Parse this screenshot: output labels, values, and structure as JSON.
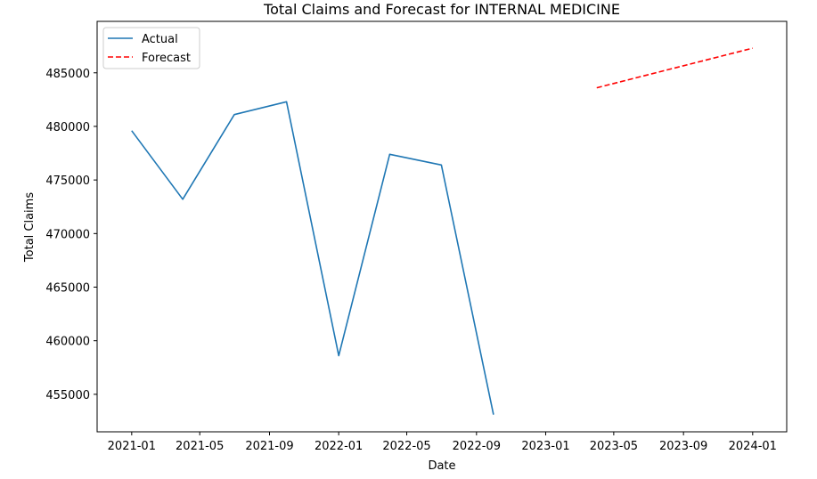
{
  "chart_data": {
    "type": "line",
    "title": "Total Claims and Forecast for INTERNAL MEDICINE",
    "xlabel": "Date",
    "ylabel": "Total Claims",
    "xlim": [
      "2020-11-01",
      "2024-03-01"
    ],
    "ylim": [
      451500,
      489800
    ],
    "x_ticks": [
      "2021-01",
      "2021-05",
      "2021-09",
      "2022-01",
      "2022-05",
      "2022-09",
      "2023-01",
      "2023-05",
      "2023-09",
      "2024-01"
    ],
    "y_ticks": [
      455000,
      460000,
      465000,
      470000,
      475000,
      480000,
      485000
    ],
    "grid": false,
    "legend_position": "top-left",
    "series": [
      {
        "name": "Actual",
        "color": "#1f77b4",
        "style": "solid",
        "points": [
          {
            "x": "2021-01-01",
            "y": 479600
          },
          {
            "x": "2021-04-01",
            "y": 473200
          },
          {
            "x": "2021-07-01",
            "y": 481100
          },
          {
            "x": "2021-10-01",
            "y": 482300
          },
          {
            "x": "2022-01-01",
            "y": 458600
          },
          {
            "x": "2022-04-01",
            "y": 477400
          },
          {
            "x": "2022-07-01",
            "y": 476400
          },
          {
            "x": "2022-10-01",
            "y": 453100
          }
        ]
      },
      {
        "name": "Forecast",
        "color": "#ff0000",
        "style": "dashed",
        "points": [
          {
            "x": "2023-04-01",
            "y": 483600
          },
          {
            "x": "2024-01-01",
            "y": 487300
          }
        ]
      }
    ]
  }
}
